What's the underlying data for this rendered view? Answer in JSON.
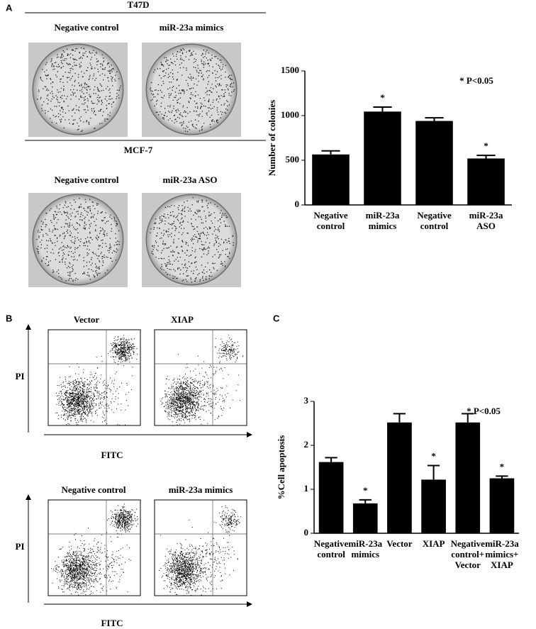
{
  "panels": {
    "a": "A",
    "b": "B",
    "c": "C",
    "t47d": "T47D",
    "mcf7": "MCF-7",
    "a_labels": [
      "Negative  control",
      "miR-23a mimics",
      "Negative  control",
      "miR-23a ASO"
    ],
    "b_labels": [
      "Vector",
      "XIAP",
      "Negative control",
      "miR-23a mimics"
    ],
    "pi": "PI",
    "fitc": "FITC"
  },
  "chart_data": [
    {
      "type": "bar",
      "ylabel": "Number of colonies",
      "annotation": "* P<0.05",
      "categories": [
        [
          "Negative",
          "control"
        ],
        [
          "miR-23a",
          "mimics"
        ],
        [
          "Negative",
          "control"
        ],
        [
          "miR-23a",
          "ASO"
        ]
      ],
      "values": [
        565,
        1045,
        940,
        520
      ],
      "errors": [
        40,
        50,
        35,
        35
      ],
      "significance": [
        null,
        "*",
        null,
        "*"
      ],
      "color": "#000000",
      "ylim": [
        0,
        1500
      ],
      "yticks": [
        0,
        500,
        1000,
        1500
      ]
    },
    {
      "type": "bar",
      "ylabel": "%Cell apoptosis",
      "annotation": "* P<0.05",
      "categories": [
        [
          "Negative",
          "control"
        ],
        [
          "miR-23a",
          "mimics"
        ],
        [
          "Vector"
        ],
        [
          "XIAP"
        ],
        [
          "Negative",
          "control+",
          "Vector"
        ],
        [
          "miR-23a",
          "mimics+",
          "XIAP"
        ]
      ],
      "values": [
        1.62,
        0.68,
        2.52,
        1.22,
        2.52,
        1.25
      ],
      "errors": [
        0.1,
        0.08,
        0.2,
        0.32,
        0.2,
        0.05
      ],
      "significance": [
        null,
        "*",
        null,
        "*",
        null,
        "*"
      ],
      "color": "#000000",
      "ylim": [
        0,
        3
      ],
      "yticks": [
        0,
        1,
        2,
        3
      ]
    }
  ]
}
